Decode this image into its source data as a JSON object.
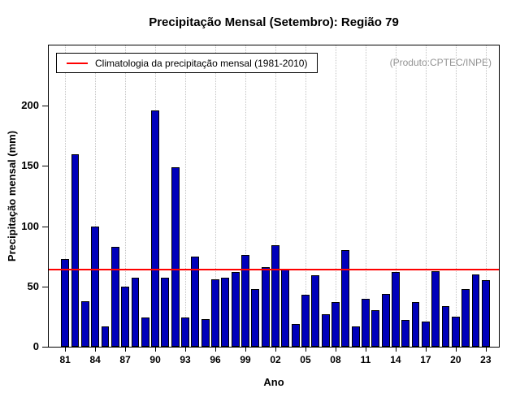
{
  "title": "Precipitação Mensal (Setembro): Região 79",
  "watermark": "(Produto:CPTEC/INPE)",
  "legend": {
    "label": "Climatologia da precipitação mensal (1981-2010)"
  },
  "chart_data": {
    "type": "bar",
    "title": "Precipitação Mensal (Setembro): Região 79",
    "xlabel": "Ano",
    "ylabel": "Precipitação mensal (mm)",
    "ylim": [
      0,
      250
    ],
    "yticks": [
      0,
      50,
      100,
      150,
      200
    ],
    "xticks": [
      "81",
      "84",
      "87",
      "90",
      "93",
      "96",
      "99",
      "02",
      "05",
      "08",
      "11",
      "14",
      "17",
      "20",
      "23"
    ],
    "years": [
      "81",
      "82",
      "83",
      "84",
      "85",
      "86",
      "87",
      "88",
      "89",
      "90",
      "91",
      "92",
      "93",
      "94",
      "95",
      "96",
      "97",
      "98",
      "99",
      "00",
      "01",
      "02",
      "03",
      "04",
      "05",
      "06",
      "07",
      "08",
      "09",
      "10",
      "11",
      "12",
      "13",
      "14",
      "15",
      "16",
      "17",
      "18",
      "19",
      "20",
      "21",
      "22",
      "23"
    ],
    "values": [
      73,
      160,
      38,
      100,
      17,
      83,
      50,
      57,
      24,
      196,
      57,
      149,
      24,
      75,
      23,
      56,
      57,
      62,
      76,
      48,
      66,
      84,
      64,
      19,
      43,
      59,
      27,
      37,
      80,
      17,
      40,
      30,
      44,
      62,
      22,
      37,
      21,
      63,
      34,
      25,
      48,
      60,
      55
    ],
    "climatology": 64,
    "bar_color": "#0000bb",
    "line_color": "#ff0000",
    "grid": "vertical-dotted",
    "legend_position": "top-left"
  }
}
